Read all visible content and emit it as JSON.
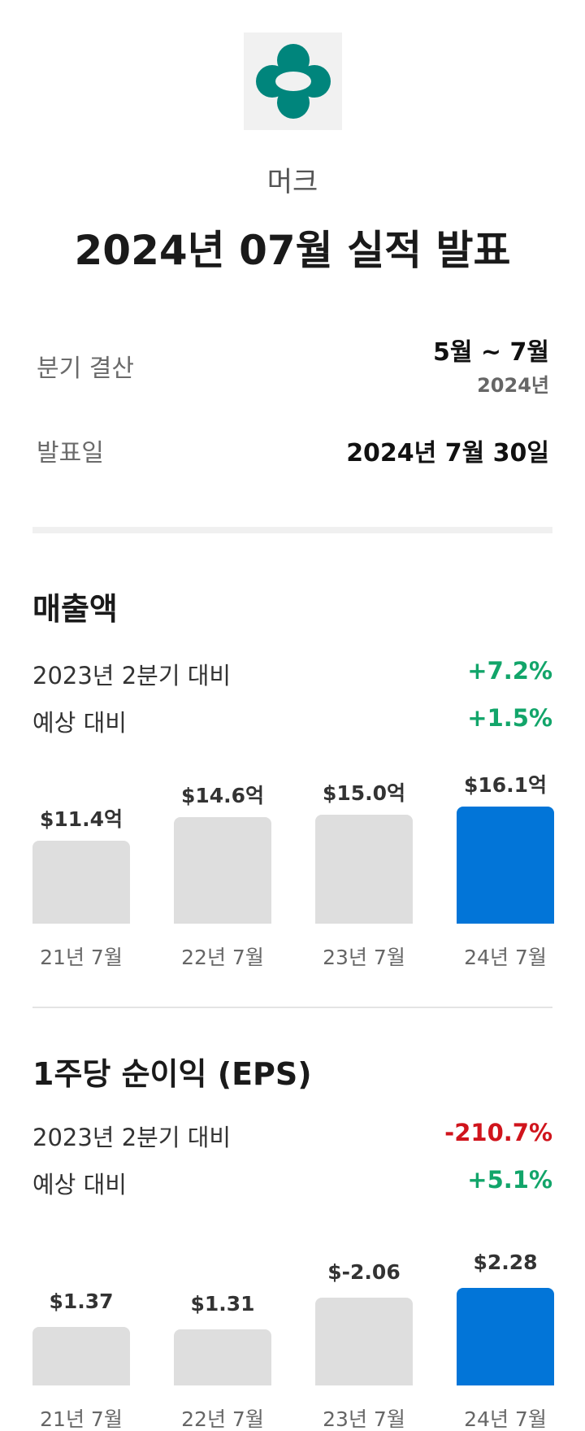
{
  "header": {
    "company": "머크",
    "title": "2024년 07월 실적 발표",
    "logo_color": "#00857c"
  },
  "info": {
    "quarter_label": "분기 결산",
    "quarter_value": "5월 ~ 7월",
    "quarter_year": "2024년",
    "date_label": "발표일",
    "date_value": "2024년 7월 30일"
  },
  "revenue": {
    "title": "매출액",
    "yoy_label": "2023년 2분기 대비",
    "yoy_value": "+7.2%",
    "est_label": "예상 대비",
    "est_value": "+1.5%",
    "bars": [
      {
        "label": "21년 7월",
        "value_text": "$11.4억",
        "value": 11.4,
        "current": false
      },
      {
        "label": "22년 7월",
        "value_text": "$14.6억",
        "value": 14.6,
        "current": false
      },
      {
        "label": "23년 7월",
        "value_text": "$15.0억",
        "value": 15.0,
        "current": false
      },
      {
        "label": "24년 7월",
        "value_text": "$16.1억",
        "value": 16.1,
        "current": true
      }
    ]
  },
  "eps": {
    "title": "1주당 순이익 (EPS)",
    "yoy_label": "2023년 2분기 대비",
    "yoy_value": "-210.7%",
    "est_label": "예상 대비",
    "est_value": "+5.1%",
    "bars": [
      {
        "label": "21년 7월",
        "value_text": "$1.37",
        "value": 1.37,
        "current": false
      },
      {
        "label": "22년 7월",
        "value_text": "$1.31",
        "value": 1.31,
        "current": false
      },
      {
        "label": "23년 7월",
        "value_text": "$-2.06",
        "value": -2.06,
        "current": false
      },
      {
        "label": "24년 7월",
        "value_text": "$2.28",
        "value": 2.28,
        "current": true
      }
    ]
  },
  "colors": {
    "positive": "#12a56a",
    "negative": "#d0141c",
    "bar_current": "#0275d8",
    "bar_past": "#dedede"
  }
}
